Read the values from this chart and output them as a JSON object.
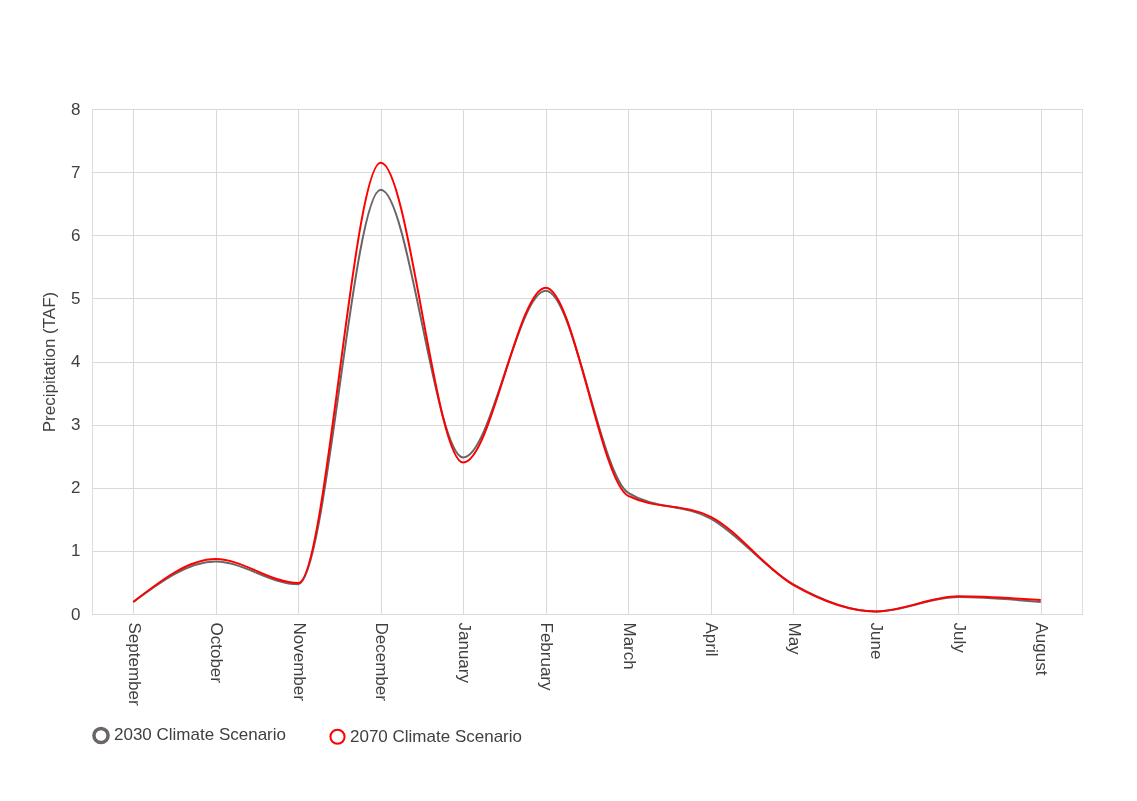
{
  "chart_data": {
    "type": "line",
    "ylabel": "Precipitation (TAF)",
    "categories": [
      "September",
      "October",
      "November",
      "December",
      "January",
      "February",
      "March",
      "April",
      "May",
      "June",
      "July",
      "August"
    ],
    "series": [
      {
        "name": "2030 Climate Scenario",
        "color": "#6b6565",
        "values": [
          0.19,
          0.83,
          0.47,
          6.72,
          2.48,
          5.12,
          1.92,
          1.51,
          0.47,
          0.04,
          0.27,
          0.19
        ]
      },
      {
        "name": "2070 Climate Scenario",
        "color": "#ff0000",
        "values": [
          0.19,
          0.87,
          0.49,
          7.15,
          2.4,
          5.17,
          1.87,
          1.54,
          0.46,
          0.04,
          0.28,
          0.22
        ]
      }
    ],
    "ylim": [
      0,
      8
    ],
    "yticks": [
      0,
      1,
      2,
      3,
      4,
      5,
      6,
      7,
      8
    ],
    "grid": true,
    "legend": "bottom",
    "marker": "none",
    "line_style": "solid"
  }
}
